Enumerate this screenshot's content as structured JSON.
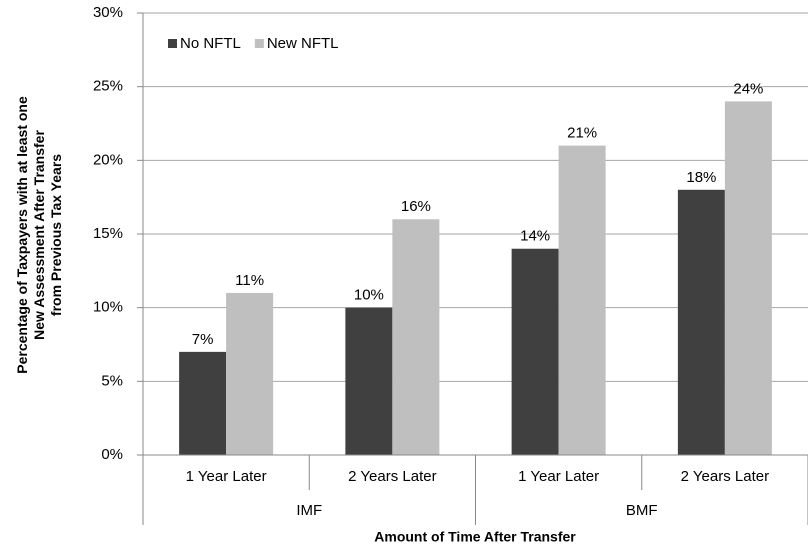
{
  "chart_data": {
    "type": "bar",
    "category_groups": [
      {
        "name": "IMF",
        "categories": [
          "1 Year Later",
          "2 Years Later"
        ]
      },
      {
        "name": "BMF",
        "categories": [
          "1 Year Later",
          "2 Years Later"
        ]
      }
    ],
    "series": [
      {
        "name": "No NFTL",
        "color": "#404040",
        "values": [
          7,
          10,
          14,
          18
        ],
        "value_labels": [
          "7%",
          "10%",
          "14%",
          "18%"
        ]
      },
      {
        "name": "New NFTL",
        "color": "#bfbfbf",
        "values": [
          11,
          16,
          21,
          24
        ],
        "value_labels": [
          "11%",
          "16%",
          "21%",
          "24%"
        ]
      }
    ],
    "ylim": [
      0,
      30
    ],
    "yticks": [
      {
        "value": 0,
        "label": "0%"
      },
      {
        "value": 5,
        "label": "5%"
      },
      {
        "value": 10,
        "label": "10%"
      },
      {
        "value": 15,
        "label": "15%"
      },
      {
        "value": 20,
        "label": "20%"
      },
      {
        "value": 25,
        "label": "25%"
      },
      {
        "value": 30,
        "label": "30%"
      }
    ],
    "grid": true,
    "legend": "top-left",
    "x_label": "Amount of Time After Transfer",
    "y_label": [
      "Percentage of Taxpayers with at least one",
      "New Assessment  After Transfer",
      "from Previous Tax Years"
    ]
  }
}
